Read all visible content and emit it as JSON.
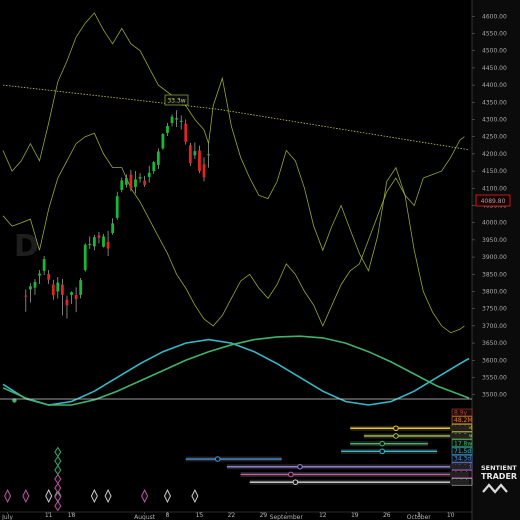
{
  "branding": {
    "line1": "SENTIENT",
    "line2": "TRADER"
  },
  "chart_data": {
    "type": "candlestick",
    "watermark": "D",
    "current_price": "4089.80",
    "y_range": [
      3435,
      4630
    ],
    "y_ticks": [
      "4600.00",
      "4550.00",
      "4500.00",
      "4450.00",
      "4400.00",
      "4350.00",
      "4300.00",
      "4250.00",
      "4200.00",
      "4150.00",
      "4100.00",
      "4050.00",
      "4000.00",
      "3950.00",
      "3900.00",
      "3850.00",
      "3800.00",
      "3750.00",
      "3700.00",
      "3650.00",
      "3600.00",
      "3550.00",
      "3500.00"
    ],
    "x_range": [
      0,
      102
    ],
    "x_labels": [
      {
        "text": "July",
        "bar": 1
      },
      {
        "text": "11",
        "bar": 10
      },
      {
        "text": "18",
        "bar": 15
      },
      {
        "text": "August",
        "bar": 31
      },
      {
        "text": "8",
        "bar": 36
      },
      {
        "text": "15",
        "bar": 43
      },
      {
        "text": "22",
        "bar": 50
      },
      {
        "text": "29",
        "bar": 57
      },
      {
        "text": "September",
        "bar": 62
      },
      {
        "text": "12",
        "bar": 70
      },
      {
        "text": "19",
        "bar": 77
      },
      {
        "text": "26",
        "bar": 84
      },
      {
        "text": "3",
        "bar": 91
      },
      {
        "text": "October",
        "bar": 91
      },
      {
        "text": "10",
        "bar": 98
      }
    ],
    "candles": [
      {
        "o": 3788,
        "h": 3806,
        "l": 3741,
        "c": 3785
      },
      {
        "o": 3806,
        "h": 3824,
        "l": 3768,
        "c": 3815
      },
      {
        "o": 3811,
        "h": 3836,
        "l": 3790,
        "c": 3828
      },
      {
        "o": 3846,
        "h": 3862,
        "l": 3822,
        "c": 3852
      },
      {
        "o": 3860,
        "h": 3903,
        "l": 3848,
        "c": 3894
      },
      {
        "o": 3851,
        "h": 3862,
        "l": 3822,
        "c": 3834
      },
      {
        "o": 3820,
        "h": 3834,
        "l": 3776,
        "c": 3789
      },
      {
        "o": 3800,
        "h": 3842,
        "l": 3780,
        "c": 3826
      },
      {
        "o": 3820,
        "h": 3836,
        "l": 3730,
        "c": 3790
      },
      {
        "o": 3776,
        "h": 3788,
        "l": 3721,
        "c": 3760
      },
      {
        "o": 3790,
        "h": 3800,
        "l": 3764,
        "c": 3798
      },
      {
        "o": 3790,
        "h": 3812,
        "l": 3740,
        "c": 3778
      },
      {
        "o": 3790,
        "h": 3839,
        "l": 3780,
        "c": 3833
      },
      {
        "o": 3862,
        "h": 3940,
        "l": 3858,
        "c": 3936
      },
      {
        "o": 3936,
        "h": 3960,
        "l": 3924,
        "c": 3938
      },
      {
        "o": 3931,
        "h": 3964,
        "l": 3920,
        "c": 3958
      },
      {
        "o": 3963,
        "h": 3973,
        "l": 3940,
        "c": 3956
      },
      {
        "o": 3930,
        "h": 3967,
        "l": 3928,
        "c": 3960
      },
      {
        "o": 3944,
        "h": 3976,
        "l": 3903,
        "c": 3925
      },
      {
        "o": 3970,
        "h": 4013,
        "l": 3965,
        "c": 3998
      },
      {
        "o": 4014,
        "h": 4090,
        "l": 4008,
        "c": 4077
      },
      {
        "o": 4095,
        "h": 4131,
        "l": 4088,
        "c": 4123
      },
      {
        "o": 4110,
        "h": 4140,
        "l": 4102,
        "c": 4130
      },
      {
        "o": 4140,
        "h": 4154,
        "l": 4091,
        "c": 4100
      },
      {
        "o": 4104,
        "h": 4150,
        "l": 4085,
        "c": 4126
      },
      {
        "o": 4128,
        "h": 4144,
        "l": 4117,
        "c": 4133
      },
      {
        "o": 4122,
        "h": 4136,
        "l": 4104,
        "c": 4110
      },
      {
        "o": 4133,
        "h": 4166,
        "l": 4117,
        "c": 4145
      },
      {
        "o": 4150,
        "h": 4179,
        "l": 4142,
        "c": 4176
      },
      {
        "o": 4168,
        "h": 4216,
        "l": 4156,
        "c": 4207
      },
      {
        "o": 4216,
        "h": 4260,
        "l": 4212,
        "c": 4258
      },
      {
        "o": 4261,
        "h": 4290,
        "l": 4252,
        "c": 4281
      },
      {
        "o": 4290,
        "h": 4315,
        "l": 4280,
        "c": 4308
      },
      {
        "o": 4300,
        "h": 4327,
        "l": 4278,
        "c": 4304
      },
      {
        "o": 4293,
        "h": 4312,
        "l": 4271,
        "c": 4296
      },
      {
        "o": 4288,
        "h": 4300,
        "l": 4227,
        "c": 4235
      },
      {
        "o": 4225,
        "h": 4232,
        "l": 4165,
        "c": 4173
      },
      {
        "o": 4196,
        "h": 4233,
        "l": 4185,
        "c": 4208
      },
      {
        "o": 4210,
        "h": 4224,
        "l": 4144,
        "c": 4150
      },
      {
        "o": 4170,
        "h": 4190,
        "l": 4120,
        "c": 4132
      },
      {
        "o": 4196,
        "h": 4230,
        "l": 4160,
        "c": 4199
      }
    ],
    "envelope_lines": [
      {
        "name": "upper",
        "color": "#aac83c",
        "points": [
          [
            0,
            4210
          ],
          [
            2,
            4150
          ],
          [
            4,
            4180
          ],
          [
            6,
            4230
          ],
          [
            8,
            4180
          ],
          [
            10,
            4290
          ],
          [
            12,
            4410
          ],
          [
            14,
            4470
          ],
          [
            16,
            4540
          ],
          [
            18,
            4580
          ],
          [
            20,
            4610
          ],
          [
            22,
            4560
          ],
          [
            24,
            4520
          ],
          [
            26,
            4565
          ],
          [
            28,
            4520
          ],
          [
            30,
            4500
          ],
          [
            32,
            4450
          ],
          [
            34,
            4400
          ],
          [
            36,
            4380
          ],
          [
            38,
            4360
          ],
          [
            40,
            4340
          ],
          [
            42,
            4300
          ],
          [
            44,
            4270
          ],
          [
            45,
            4230
          ],
          [
            46,
            4340
          ],
          [
            48,
            4420
          ],
          [
            49,
            4350
          ],
          [
            50,
            4280
          ],
          [
            52,
            4190
          ],
          [
            54,
            4130
          ],
          [
            56,
            4080
          ],
          [
            58,
            4070
          ],
          [
            60,
            4120
          ],
          [
            62,
            4210
          ],
          [
            64,
            4180
          ],
          [
            66,
            4100
          ],
          [
            68,
            3990
          ],
          [
            70,
            3920
          ],
          [
            72,
            3990
          ],
          [
            74,
            4050
          ],
          [
            76,
            3980
          ],
          [
            78,
            3910
          ],
          [
            80,
            3860
          ],
          [
            82,
            3960
          ],
          [
            84,
            4120
          ],
          [
            86,
            4160
          ],
          [
            88,
            4080
          ],
          [
            90,
            4050
          ],
          [
            92,
            4130
          ],
          [
            94,
            4140
          ],
          [
            96,
            4150
          ],
          [
            98,
            4190
          ],
          [
            100,
            4240
          ],
          [
            101,
            4250
          ]
        ]
      },
      {
        "name": "lower",
        "color": "#aac83c",
        "points": [
          [
            0,
            4020
          ],
          [
            2,
            3990
          ],
          [
            4,
            4000
          ],
          [
            6,
            4010
          ],
          [
            8,
            3920
          ],
          [
            10,
            4040
          ],
          [
            12,
            4130
          ],
          [
            14,
            4180
          ],
          [
            16,
            4230
          ],
          [
            18,
            4250
          ],
          [
            20,
            4260
          ],
          [
            22,
            4200
          ],
          [
            24,
            4160
          ],
          [
            26,
            4160
          ],
          [
            28,
            4100
          ],
          [
            30,
            4060
          ],
          [
            32,
            4010
          ],
          [
            34,
            3960
          ],
          [
            36,
            3910
          ],
          [
            38,
            3850
          ],
          [
            40,
            3810
          ],
          [
            42,
            3760
          ],
          [
            44,
            3720
          ],
          [
            46,
            3700
          ],
          [
            48,
            3730
          ],
          [
            50,
            3780
          ],
          [
            52,
            3830
          ],
          [
            54,
            3850
          ],
          [
            56,
            3810
          ],
          [
            58,
            3780
          ],
          [
            60,
            3820
          ],
          [
            62,
            3880
          ],
          [
            64,
            3850
          ],
          [
            66,
            3800
          ],
          [
            68,
            3760
          ],
          [
            70,
            3700
          ],
          [
            72,
            3760
          ],
          [
            74,
            3820
          ],
          [
            76,
            3860
          ],
          [
            78,
            3880
          ],
          [
            80,
            3950
          ],
          [
            82,
            4020
          ],
          [
            84,
            4090
          ],
          [
            86,
            4130
          ],
          [
            88,
            4080
          ],
          [
            90,
            3920
          ],
          [
            92,
            3800
          ],
          [
            94,
            3740
          ],
          [
            96,
            3700
          ],
          [
            98,
            3680
          ],
          [
            100,
            3690
          ],
          [
            101,
            3700
          ]
        ]
      }
    ],
    "trendline": {
      "label": "33.3w",
      "color": "#c8c850",
      "points": [
        [
          0,
          4400
        ],
        [
          47,
          4330
        ],
        [
          102,
          4212
        ]
      ]
    },
    "cycle_waves": [
      {
        "name": "cyan-wave",
        "color": "#35b8c8",
        "points": [
          [
            0,
            3530
          ],
          [
            5,
            3488
          ],
          [
            10,
            3470
          ],
          [
            15,
            3480
          ],
          [
            20,
            3510
          ],
          [
            25,
            3550
          ],
          [
            30,
            3590
          ],
          [
            35,
            3625
          ],
          [
            40,
            3650
          ],
          [
            45,
            3660
          ],
          [
            50,
            3650
          ],
          [
            55,
            3625
          ],
          [
            60,
            3590
          ],
          [
            65,
            3550
          ],
          [
            70,
            3510
          ],
          [
            75,
            3480
          ],
          [
            80,
            3470
          ],
          [
            85,
            3480
          ],
          [
            90,
            3510
          ],
          [
            95,
            3550
          ],
          [
            100,
            3590
          ],
          [
            102,
            3605
          ]
        ]
      },
      {
        "name": "green-wave",
        "color": "#3fb36a",
        "points": [
          [
            0,
            3520
          ],
          [
            5,
            3490
          ],
          [
            10,
            3470
          ],
          [
            15,
            3470
          ],
          [
            20,
            3485
          ],
          [
            25,
            3510
          ],
          [
            30,
            3540
          ],
          [
            35,
            3570
          ],
          [
            40,
            3600
          ],
          [
            45,
            3625
          ],
          [
            50,
            3645
          ],
          [
            55,
            3660
          ],
          [
            60,
            3668
          ],
          [
            65,
            3670
          ],
          [
            70,
            3665
          ],
          [
            75,
            3650
          ],
          [
            80,
            3625
          ],
          [
            85,
            3595
          ],
          [
            90,
            3560
          ],
          [
            95,
            3525
          ],
          [
            100,
            3500
          ],
          [
            102,
            3490
          ]
        ]
      }
    ],
    "cycle_timeframes": [
      {
        "label": "8.9y",
        "color": "#c0392b",
        "bar": null,
        "from": null,
        "to": null
      },
      {
        "label": "48.2M",
        "color": "#e67e22",
        "bar": null,
        "from": null,
        "to": null
      },
      {
        "label": "16.1M",
        "color": "#e6c22a",
        "bar": 86,
        "from": 76,
        "to": 102
      },
      {
        "label": "33.3w",
        "color": "#a3c24a",
        "bar": 86,
        "from": 79,
        "to": 102
      },
      {
        "label": "17.8w",
        "color": "#3fb36a",
        "bar": 83,
        "from": 76,
        "to": 93
      },
      {
        "label": "71.5d",
        "color": "#35b8c8",
        "bar": 83,
        "from": 74,
        "to": 95
      },
      {
        "label": "34.3d",
        "color": "#4a8de0",
        "bar": 47,
        "from": 40,
        "to": 61
      },
      {
        "label": "17.3d",
        "color": "#8e7ad8",
        "bar": 65,
        "from": 49,
        "to": 102
      },
      {
        "label": "9.1d",
        "color": "#c65aa8",
        "bar": 63,
        "from": 52,
        "to": 102
      },
      {
        "label": "4.5d",
        "color": "#d5d5d5",
        "bar": 64,
        "from": 54,
        "to": 102
      }
    ],
    "trough_diamonds": [
      {
        "bar": 1,
        "color": "#c65aa8"
      },
      {
        "bar": 5,
        "color": "#c65aa8"
      },
      {
        "bar": 10,
        "color": "#d5d5d5"
      },
      {
        "bar": 12,
        "color": "#3fb36a"
      },
      {
        "bar": 20,
        "color": "#d5d5d5"
      },
      {
        "bar": 23,
        "color": "#d5d5d5"
      },
      {
        "bar": 31,
        "color": "#c65aa8"
      },
      {
        "bar": 36,
        "color": "#d5d5d5"
      },
      {
        "bar": 42,
        "color": "#d5d5d5"
      }
    ]
  }
}
